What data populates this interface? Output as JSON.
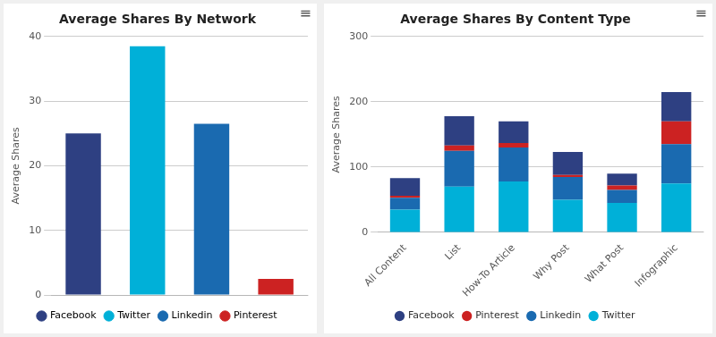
{
  "chart_data": [
    {
      "type": "bar",
      "title": "Average Shares By Network",
      "ylabel": "Average Shares",
      "categories": [
        "Facebook",
        "Twitter",
        "Linkedin",
        "Pinterest"
      ],
      "values": [
        25,
        38.5,
        26.5,
        2.5
      ],
      "colors": [
        "#2e4082",
        "#00b0d8",
        "#1a6ab0",
        "#cc2222"
      ],
      "ylim": [
        0,
        40
      ],
      "yticks": [
        0,
        10,
        20,
        30,
        40
      ],
      "grid": true,
      "legend": "bottom",
      "tick_labels": "y",
      "annotations": [
        "≡"
      ]
    },
    {
      "type": "bar",
      "stacked": true,
      "title": "Average Shares By Content Type",
      "ylabel": "Average Shares",
      "categories": [
        "All Content",
        "List",
        "How-To Article",
        "Why Post",
        "What Post",
        "Infographic"
      ],
      "series": [
        {
          "name": "Twitter",
          "color": "#00b0d8",
          "values": [
            35,
            70,
            78,
            50,
            45,
            75
          ]
        },
        {
          "name": "Linkedin",
          "color": "#1a6ab0",
          "values": [
            18,
            55,
            52,
            35,
            20,
            60
          ]
        },
        {
          "name": "Pinterest",
          "color": "#cc2222",
          "values": [
            3,
            8,
            7,
            3,
            7,
            35
          ]
        },
        {
          "name": "Facebook",
          "color": "#2e4082",
          "values": [
            27,
            45,
            33,
            35,
            18,
            45
          ]
        }
      ],
      "ylim": [
        0,
        300
      ],
      "yticks": [
        0,
        100,
        200,
        300
      ],
      "grid": true,
      "legend": "bottom",
      "annotations": [
        "≡"
      ]
    }
  ]
}
